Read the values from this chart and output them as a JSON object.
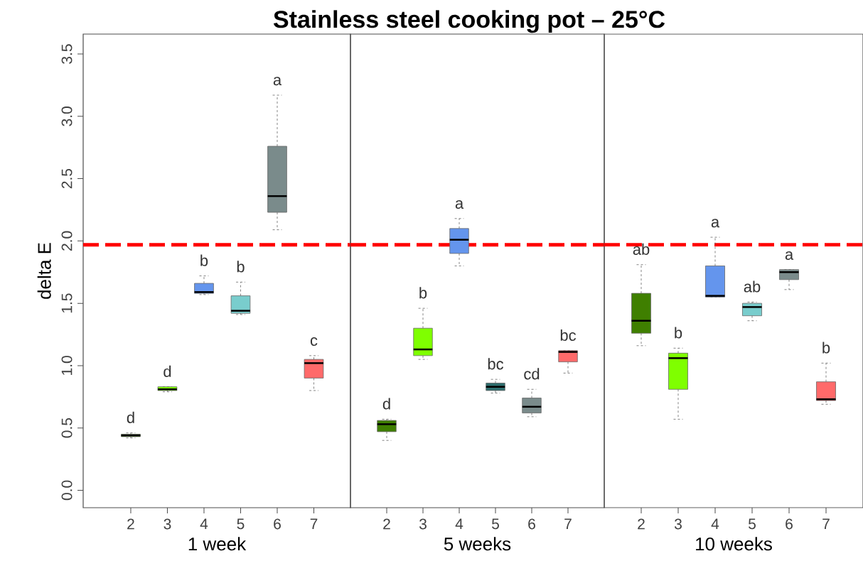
{
  "chart_data": [
    {
      "type": "box",
      "ylabel": "delta E",
      "xlabel": "1 week",
      "categories": [
        "2",
        "3",
        "4",
        "5",
        "6",
        "7"
      ],
      "boxes": [
        {
          "low": 0.42,
          "q1": 0.43,
          "median": 0.44,
          "q3": 0.45,
          "high": 0.46
        },
        {
          "low": 0.79,
          "q1": 0.8,
          "median": 0.81,
          "q3": 0.83,
          "high": 0.83
        },
        {
          "low": 1.57,
          "q1": 1.58,
          "median": 1.59,
          "q3": 1.66,
          "high": 1.72
        },
        {
          "low": 1.41,
          "q1": 1.42,
          "median": 1.44,
          "q3": 1.56,
          "high": 1.67
        },
        {
          "low": 2.09,
          "q1": 2.23,
          "median": 2.36,
          "q3": 2.76,
          "high": 3.17
        },
        {
          "low": 0.8,
          "q1": 0.9,
          "median": 1.02,
          "q3": 1.05,
          "high": 1.08
        }
      ],
      "colors": [
        "#3f7f00",
        "#7fff00",
        "#6495ed",
        "#79cdcd",
        "#7a8b8b",
        "#ff6a6a"
      ],
      "ylim": [
        -0.14,
        3.66
      ],
      "yticks": [
        {
          "value": 0,
          "label": "0.0"
        },
        {
          "value": 0.5,
          "label": "0.5"
        },
        {
          "value": 1,
          "label": "1.0"
        },
        {
          "value": 1.5,
          "label": "1.5"
        },
        {
          "value": 2,
          "label": "2.0"
        },
        {
          "value": 2.5,
          "label": "2.5"
        },
        {
          "value": 3,
          "label": "3.0"
        },
        {
          "value": 3.5,
          "label": "3.5"
        }
      ],
      "ref_lines": [
        {
          "axis": "y",
          "value": 1.97,
          "color": "#ff0000",
          "line_style": "dashed"
        }
      ],
      "annotations": [
        "d",
        "d",
        "b",
        "b",
        "a",
        "c"
      ]
    },
    {
      "type": "box",
      "title": "Stainless steel cooking pot – 25°C",
      "xlabel": "5 weeks",
      "categories": [
        "2",
        "3",
        "4",
        "5",
        "6",
        "7"
      ],
      "tick_labels": "x",
      "boxes": [
        {
          "low": 0.4,
          "q1": 0.47,
          "median": 0.53,
          "q3": 0.56,
          "high": 0.57
        },
        {
          "low": 1.05,
          "q1": 1.08,
          "median": 1.13,
          "q3": 1.3,
          "high": 1.46
        },
        {
          "low": 1.8,
          "q1": 1.9,
          "median": 2.01,
          "q3": 2.1,
          "high": 2.18
        },
        {
          "low": 0.78,
          "q1": 0.8,
          "median": 0.83,
          "q3": 0.86,
          "high": 0.89
        },
        {
          "low": 0.59,
          "q1": 0.62,
          "median": 0.67,
          "q3": 0.74,
          "high": 0.81
        },
        {
          "low": 0.94,
          "q1": 1.03,
          "median": 1.11,
          "q3": 1.12,
          "high": 1.12
        }
      ],
      "colors": [
        "#3f7f00",
        "#7fff00",
        "#6495ed",
        "#2e6e6e",
        "#7a8b8b",
        "#ff6a6a"
      ],
      "ylim": [
        -0.14,
        3.66
      ],
      "ref_lines": [
        {
          "axis": "y",
          "value": 1.97,
          "color": "#ff0000",
          "line_style": "dashed"
        }
      ],
      "annotations": [
        "d",
        "b",
        "a",
        "bc",
        "cd",
        "bc"
      ]
    },
    {
      "type": "box",
      "xlabel": "10 weeks",
      "categories": [
        "2",
        "3",
        "4",
        "5",
        "6",
        "7"
      ],
      "tick_labels": "x",
      "boxes": [
        {
          "low": 1.16,
          "q1": 1.26,
          "median": 1.36,
          "q3": 1.58,
          "high": 1.81
        },
        {
          "low": 0.57,
          "q1": 0.81,
          "median": 1.06,
          "q3": 1.1,
          "high": 1.14
        },
        {
          "low": 1.55,
          "q1": 1.55,
          "median": 1.56,
          "q3": 1.8,
          "high": 2.03
        },
        {
          "low": 1.36,
          "q1": 1.4,
          "median": 1.47,
          "q3": 1.5,
          "high": 1.51
        },
        {
          "low": 1.61,
          "q1": 1.69,
          "median": 1.75,
          "q3": 1.77,
          "high": 1.77
        },
        {
          "low": 0.69,
          "q1": 0.72,
          "median": 0.73,
          "q3": 0.87,
          "high": 1.02
        }
      ],
      "colors": [
        "#3f7f00",
        "#7fff00",
        "#6495ed",
        "#79cdcd",
        "#7a8b8b",
        "#ff6a6a"
      ],
      "ylim": [
        -0.14,
        3.66
      ],
      "ref_lines": [
        {
          "axis": "y",
          "value": 1.97,
          "color": "#ff0000",
          "line_style": "dashed"
        }
      ],
      "annotations": [
        "ab",
        "b",
        "a",
        "ab",
        "a",
        "b"
      ]
    }
  ]
}
